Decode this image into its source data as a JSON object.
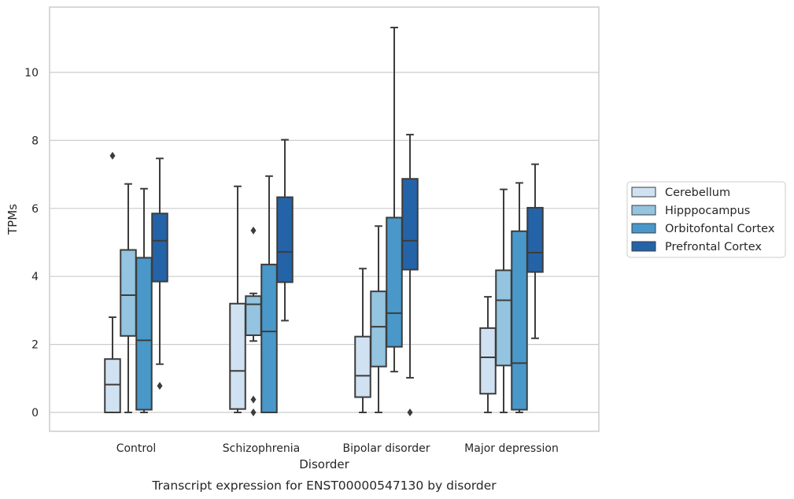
{
  "caption": "Transcript expression for ENST00000547130 by disorder",
  "chart_data": {
    "type": "box",
    "xlabel": "Disorder",
    "ylabel": "TPMs",
    "ylim": [
      -0.55,
      12.0
    ],
    "yticks": [
      0,
      2,
      4,
      6,
      8,
      10
    ],
    "grid": "horizontal",
    "legend_position": "right",
    "categories": [
      "Control",
      "Schizophrenia",
      "Bipolar disorder",
      "Major depression"
    ],
    "series": [
      {
        "name": "Cerebellum",
        "color": "#d0e1f2",
        "boxes": [
          {
            "whisker_low": 0.0,
            "q1": 0.0,
            "median": 0.82,
            "q3": 1.57,
            "whisker_high": 2.8,
            "outliers": [
              7.55
            ]
          },
          {
            "whisker_low": 0.0,
            "q1": 0.1,
            "median": 1.22,
            "q3": 3.2,
            "whisker_high": 6.65,
            "outliers": []
          },
          {
            "whisker_low": 0.0,
            "q1": 0.45,
            "median": 1.08,
            "q3": 2.23,
            "whisker_high": 4.23,
            "outliers": []
          },
          {
            "whisker_low": 0.0,
            "q1": 0.55,
            "median": 1.62,
            "q3": 2.48,
            "whisker_high": 3.4,
            "outliers": []
          }
        ]
      },
      {
        "name": "Hipppocampus",
        "color": "#94c4df",
        "boxes": [
          {
            "whisker_low": 0.0,
            "q1": 2.25,
            "median": 3.45,
            "q3": 4.78,
            "whisker_high": 6.72,
            "outliers": []
          },
          {
            "whisker_low": 2.1,
            "q1": 2.27,
            "median": 3.18,
            "q3": 3.42,
            "whisker_high": 3.5,
            "outliers": [
              5.35,
              0.38,
              0.0
            ]
          },
          {
            "whisker_low": 0.0,
            "q1": 1.35,
            "median": 2.52,
            "q3": 3.56,
            "whisker_high": 5.48,
            "outliers": []
          },
          {
            "whisker_low": 0.0,
            "q1": 1.38,
            "median": 3.3,
            "q3": 4.18,
            "whisker_high": 6.56,
            "outliers": []
          }
        ]
      },
      {
        "name": "Orbitofontal Cortex",
        "color": "#4a98c9",
        "boxes": [
          {
            "whisker_low": 0.0,
            "q1": 0.08,
            "median": 2.12,
            "q3": 4.55,
            "whisker_high": 6.58,
            "outliers": []
          },
          {
            "whisker_low": 0.0,
            "q1": 0.0,
            "median": 2.38,
            "q3": 4.35,
            "whisker_high": 6.95,
            "outliers": []
          },
          {
            "whisker_low": 1.2,
            "q1": 1.93,
            "median": 2.92,
            "q3": 5.73,
            "whisker_high": 11.32,
            "outliers": []
          },
          {
            "whisker_low": 0.0,
            "q1": 0.08,
            "median": 1.45,
            "q3": 5.33,
            "whisker_high": 6.75,
            "outliers": []
          }
        ]
      },
      {
        "name": "Prefrontal Cortex",
        "color": "#2463a8",
        "boxes": [
          {
            "whisker_low": 1.42,
            "q1": 3.85,
            "median": 5.05,
            "q3": 5.85,
            "whisker_high": 7.47,
            "outliers": [
              0.78
            ]
          },
          {
            "whisker_low": 2.7,
            "q1": 3.83,
            "median": 4.72,
            "q3": 6.33,
            "whisker_high": 8.02,
            "outliers": []
          },
          {
            "whisker_low": 1.02,
            "q1": 4.2,
            "median": 5.05,
            "q3": 6.87,
            "whisker_high": 8.17,
            "outliers": [
              0.0
            ]
          },
          {
            "whisker_low": 2.18,
            "q1": 4.13,
            "median": 4.7,
            "q3": 6.02,
            "whisker_high": 7.3,
            "outliers": []
          }
        ]
      }
    ]
  }
}
